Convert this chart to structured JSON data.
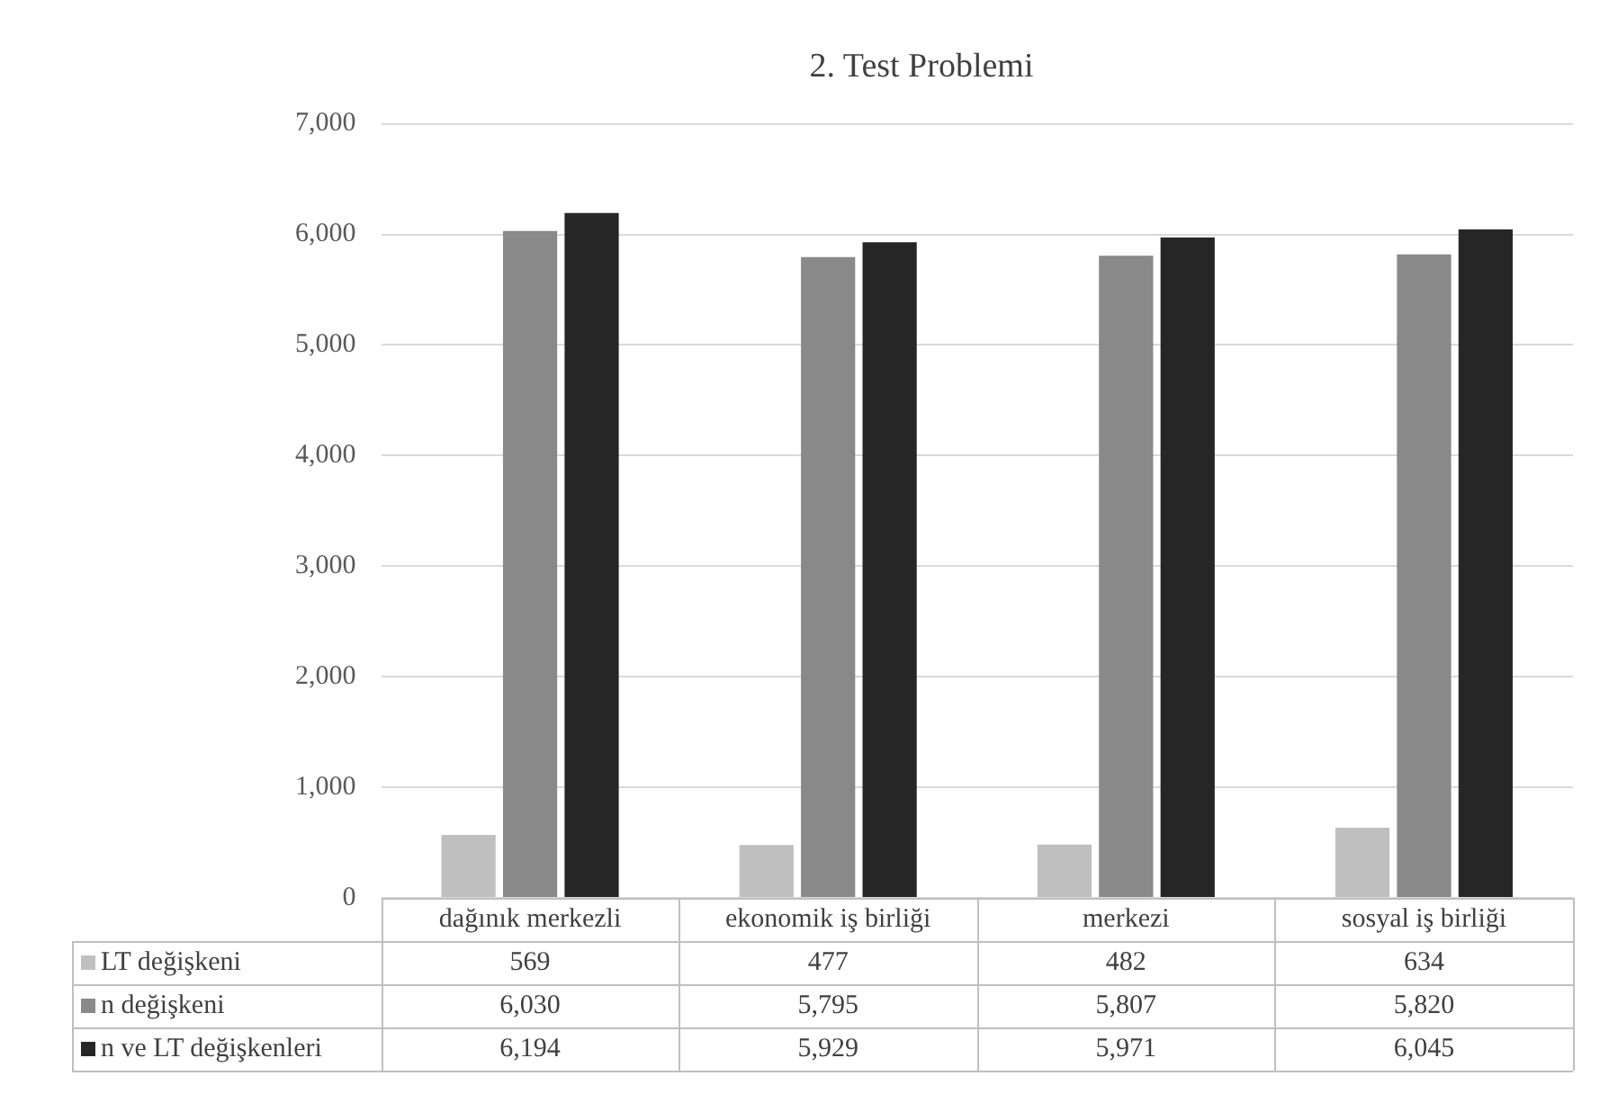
{
  "chart_data": {
    "type": "bar",
    "title": "2. Test Problemi",
    "categories": [
      "dağınık merkezli",
      "ekonomik iş birliği",
      "merkezi",
      "sosyal iş birliği"
    ],
    "series": [
      {
        "name": "LT değişkeni",
        "color": "#bfbfbf",
        "values": [
          569,
          477,
          482,
          634
        ],
        "value_labels": [
          "569",
          "477",
          "482",
          "634"
        ]
      },
      {
        "name": "n değişkeni",
        "color": "#898989",
        "values": [
          6030,
          5795,
          5807,
          5820
        ],
        "value_labels": [
          "6,030",
          "5,795",
          "5,807",
          "5,820"
        ]
      },
      {
        "name": "n ve LT değişkenleri",
        "color": "#262626",
        "values": [
          6194,
          5929,
          5971,
          6045
        ],
        "value_labels": [
          "6,194",
          "5,929",
          "5,971",
          "6,045"
        ]
      }
    ],
    "ylim": [
      0,
      7000
    ],
    "yticks": [
      0,
      {
        "value": 1000,
        "label": "1,000"
      },
      {
        "value": 2000,
        "label": "2,000"
      },
      {
        "value": 3000,
        "label": "3,000"
      },
      {
        "value": 4000,
        "label": "4,000"
      },
      {
        "value": 5000,
        "label": "5,000"
      },
      {
        "value": 6000,
        "label": "6,000"
      },
      {
        "value": 7000,
        "label": "7,000"
      }
    ],
    "grid": "y",
    "legend": "bottom"
  }
}
